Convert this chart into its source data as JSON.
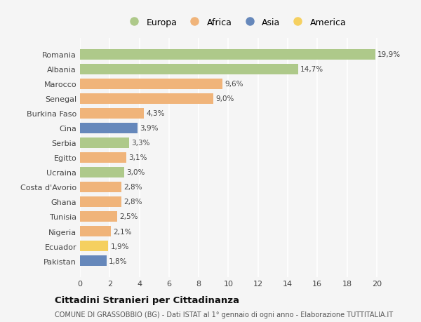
{
  "countries": [
    "Romania",
    "Albania",
    "Marocco",
    "Senegal",
    "Burkina Faso",
    "Cina",
    "Serbia",
    "Egitto",
    "Ucraina",
    "Costa d'Avorio",
    "Ghana",
    "Tunisia",
    "Nigeria",
    "Ecuador",
    "Pakistan"
  ],
  "values": [
    19.9,
    14.7,
    9.6,
    9.0,
    4.3,
    3.9,
    3.3,
    3.1,
    3.0,
    2.8,
    2.8,
    2.5,
    2.1,
    1.9,
    1.8
  ],
  "labels": [
    "19,9%",
    "14,7%",
    "9,6%",
    "9,0%",
    "4,3%",
    "3,9%",
    "3,3%",
    "3,1%",
    "3,0%",
    "2,8%",
    "2,8%",
    "2,5%",
    "2,1%",
    "1,9%",
    "1,8%"
  ],
  "continents": [
    "Europa",
    "Europa",
    "Africa",
    "Africa",
    "Africa",
    "Asia",
    "Europa",
    "Africa",
    "Europa",
    "Africa",
    "Africa",
    "Africa",
    "Africa",
    "America",
    "Asia"
  ],
  "colors": {
    "Europa": "#aec98a",
    "Africa": "#f0b47a",
    "Asia": "#6688bb",
    "America": "#f5d060"
  },
  "legend_order": [
    "Europa",
    "Africa",
    "Asia",
    "America"
  ],
  "title": "Cittadini Stranieri per Cittadinanza",
  "subtitle": "COMUNE DI GRASSOBBIO (BG) - Dati ISTAT al 1° gennaio di ogni anno - Elaborazione TUTTITALIA.IT",
  "xlim": [
    0,
    21
  ],
  "xticks": [
    0,
    2,
    4,
    6,
    8,
    10,
    12,
    14,
    16,
    18,
    20
  ],
  "background_color": "#f5f5f5",
  "grid_color": "#ffffff",
  "bar_height": 0.72
}
